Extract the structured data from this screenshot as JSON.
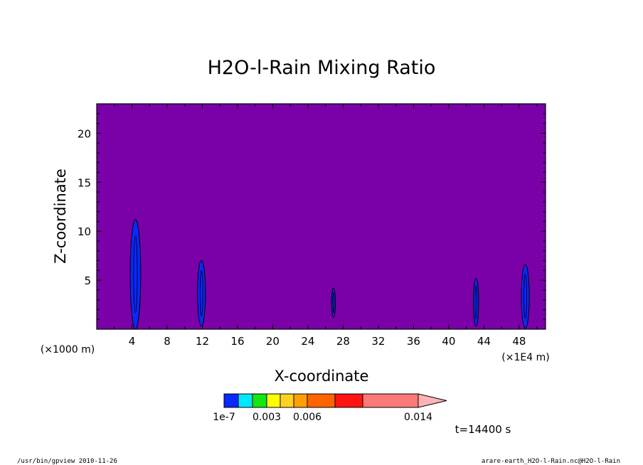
{
  "chart_data": {
    "type": "heatmap",
    "title": "H2O-l-Rain Mixing Ratio",
    "xlabel": "X-coordinate",
    "ylabel": "Z-coordinate",
    "x_unit_left": "(×1000 m)",
    "x_unit_right": "(×1E4 m)",
    "xlim": [
      0,
      51
    ],
    "ylim": [
      0,
      23
    ],
    "x_ticks": [
      4,
      8,
      12,
      16,
      20,
      24,
      28,
      32,
      36,
      40,
      44,
      48
    ],
    "x_tick_labels": [
      "4",
      "8",
      "12",
      "16",
      "20",
      "24",
      "28",
      "32",
      "36",
      "40",
      "44",
      "48"
    ],
    "y_ticks": [
      5,
      10,
      15,
      20
    ],
    "y_tick_labels": [
      "5",
      "10",
      "15",
      "20"
    ],
    "background_color": "#7a00a8",
    "colorbar": {
      "bins": [
        {
          "color": "#0a28ff"
        },
        {
          "color": "#00e6ff"
        },
        {
          "color": "#14e614"
        },
        {
          "color": "#ffff00"
        },
        {
          "color": "#ffd21e"
        },
        {
          "color": "#ffa000"
        },
        {
          "color": "#ff6400"
        },
        {
          "color": "#ff1414"
        },
        {
          "color": "#ff7878"
        }
      ],
      "extend_color": "#ffb4b4",
      "labels": [
        {
          "text": "1e-7",
          "value": 1e-07
        },
        {
          "text": "0.003",
          "value": 0.003
        },
        {
          "text": "0.006",
          "value": 0.006
        },
        {
          "text": "0.014",
          "value": 0.014
        }
      ]
    },
    "rain_cells": [
      {
        "x": 4.4,
        "z_bottom": 0.0,
        "z_top": 11.2,
        "half_width_x": 0.6
      },
      {
        "x": 11.9,
        "z_bottom": 0.3,
        "z_top": 7.0,
        "half_width_x": 0.45
      },
      {
        "x": 26.9,
        "z_bottom": 1.2,
        "z_top": 4.2,
        "half_width_x": 0.22
      },
      {
        "x": 43.1,
        "z_bottom": 0.3,
        "z_top": 5.2,
        "half_width_x": 0.3
      },
      {
        "x": 48.7,
        "z_bottom": 0.1,
        "z_top": 6.6,
        "half_width_x": 0.45
      }
    ],
    "time_label": "t=14400 s"
  },
  "footer": {
    "left": "/usr/bin/gpview  2010-11-26",
    "right": "arare-earth_H2O-l-Rain.nc@H2O-l-Rain"
  }
}
